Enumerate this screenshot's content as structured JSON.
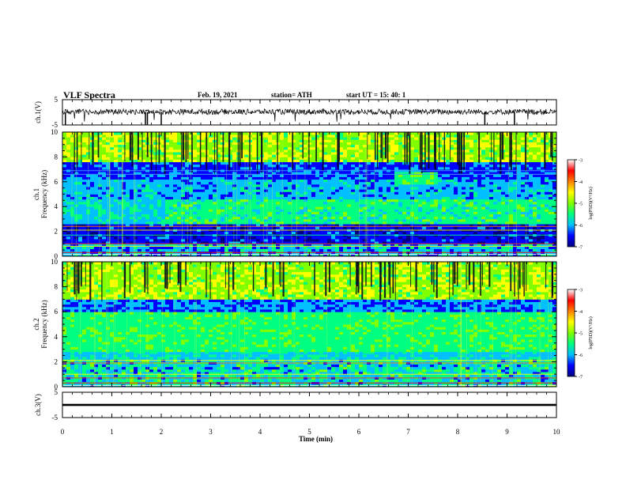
{
  "header": {
    "title": "VLF Spectra",
    "date": "Feb. 19, 2021",
    "station": "station= ATH",
    "start": "start  UT  =   15: 40: 1"
  },
  "chart_data": {
    "type": "spectrogram",
    "x_axis": {
      "label": "Time  (min)",
      "range": [
        0,
        10
      ],
      "ticks": [
        "0",
        "1",
        "2",
        "3",
        "4",
        "5",
        "6",
        "7",
        "8",
        "9",
        "10"
      ]
    },
    "panels": [
      {
        "kind": "waveform",
        "ylabel": "ch.1(V)",
        "yrange": [
          -5,
          5
        ],
        "ticks": [
          "5",
          "-5"
        ]
      },
      {
        "kind": "spectrogram",
        "ylabel_top": "ch.1",
        "ylabel": "Frequency  (kHz)",
        "yrange": [
          0,
          10
        ],
        "ticks": [
          "0",
          "2",
          "4",
          "6",
          "8",
          "10"
        ],
        "colorbar": {
          "range": [
            -7,
            -3
          ],
          "ticks": [
            "-3",
            "-4",
            "-5",
            "-6",
            "-7"
          ],
          "label": "log(PSD)(V²/Hz)"
        }
      },
      {
        "kind": "spectrogram",
        "ylabel_top": "ch.2",
        "ylabel": "Frequency  (kHz)",
        "yrange": [
          0,
          10
        ],
        "ticks": [
          "0",
          "2",
          "4",
          "6",
          "8",
          "10"
        ],
        "colorbar": {
          "range": [
            -7,
            -3
          ],
          "ticks": [
            "-3",
            "-4",
            "-5",
            "-6",
            "-7"
          ],
          "label": "log(PSD)(V²/Hz)"
        }
      },
      {
        "kind": "waveform",
        "ylabel": "ch.3(V)",
        "yrange": [
          -5,
          5
        ],
        "ticks": [
          "5",
          "-5"
        ]
      }
    ],
    "colormap": [
      "#000080",
      "#0000ff",
      "#00c0ff",
      "#00ff80",
      "#80ff00",
      "#ffff00",
      "#ff8000",
      "#ff0000",
      "#ffffff"
    ]
  }
}
